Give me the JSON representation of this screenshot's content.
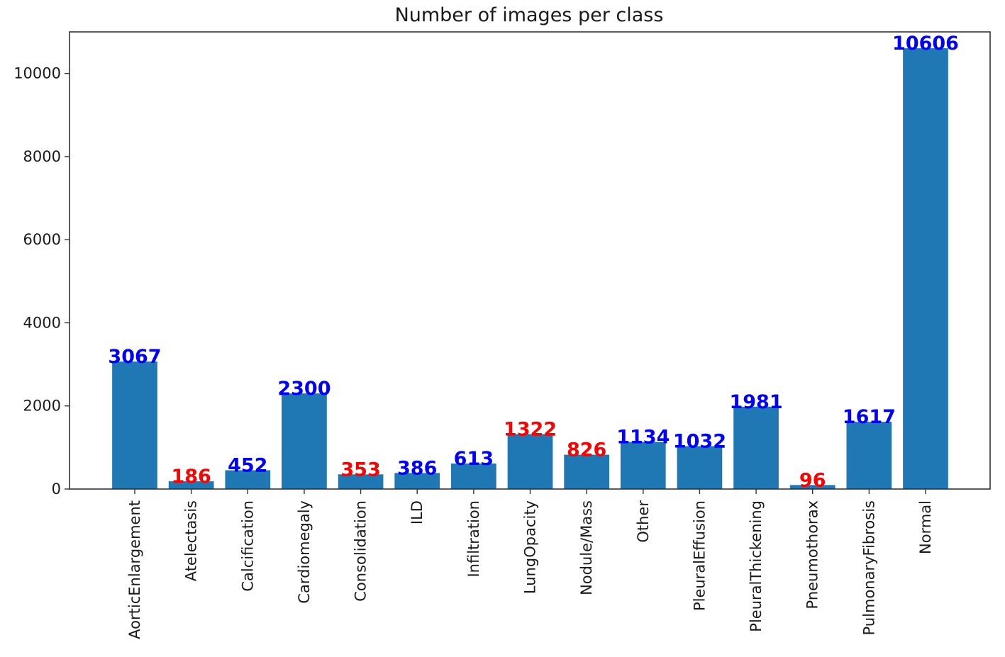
{
  "chart_data": {
    "type": "bar",
    "title": "Number of images per class",
    "xlabel": "",
    "ylabel": "",
    "categories": [
      "AorticEnlargement",
      "Atelectasis",
      "Calcification",
      "Cardiomegaly",
      "Consolidation",
      "ILD",
      "Infiltration",
      "LungOpacity",
      "Nodule/Mass",
      "Other",
      "PleuralEffusion",
      "PleuralThickening",
      "Pneumothorax",
      "PulmonaryFibrosis",
      "Normal"
    ],
    "values": [
      3067,
      186,
      452,
      2300,
      353,
      386,
      613,
      1322,
      826,
      1134,
      1032,
      1981,
      96,
      1617,
      10606
    ],
    "value_labels": [
      "3067",
      "186",
      "452",
      "2300",
      "353",
      "386",
      "613",
      "1322",
      "826",
      "1134",
      "1032",
      "1981",
      "96",
      "1617",
      "10606"
    ],
    "label_colors": [
      "#0000ff",
      "#ff0000",
      "#0000ff",
      "#0000ff",
      "#ff0000",
      "#0000ff",
      "#0000ff",
      "#ff0000",
      "#ff0000",
      "#0000ff",
      "#0000ff",
      "#0000ff",
      "#ff0000",
      "#0000ff",
      "#0000ff"
    ],
    "bar_color": "#1f77b4",
    "ylim": [
      0,
      11000
    ],
    "yticks": [
      0,
      2000,
      4000,
      6000,
      8000,
      10000
    ],
    "ytick_labels": [
      "0",
      "2000",
      "4000",
      "6000",
      "8000",
      "10000"
    ],
    "grid": false,
    "legend": "none"
  }
}
